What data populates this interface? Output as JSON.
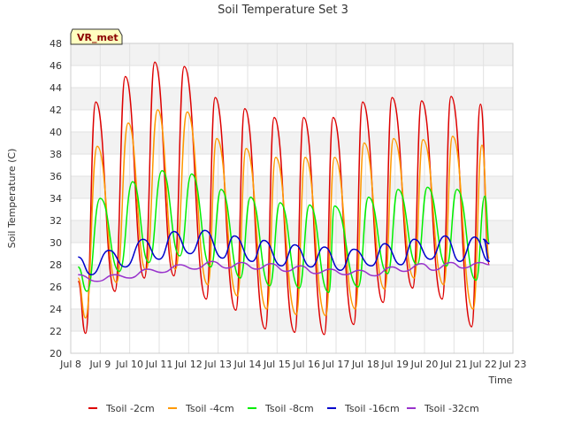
{
  "chart_data": {
    "type": "line",
    "title": "Soil Temperature Set 3",
    "xlabel": "Time",
    "ylabel": "Soil Temperature (C)",
    "badge": "VR_met",
    "xlim": [
      8,
      23
    ],
    "ylim": [
      20,
      48
    ],
    "x_ticks": [
      {
        "value": 8,
        "label": "Jul 8"
      },
      {
        "value": 9,
        "label": "Jul 9"
      },
      {
        "value": 10,
        "label": "Jul 10"
      },
      {
        "value": 11,
        "label": "Jul 11"
      },
      {
        "value": 12,
        "label": "Jul 12"
      },
      {
        "value": 13,
        "label": "Jul 13"
      },
      {
        "value": 14,
        "label": "Jul 14"
      },
      {
        "value": 15,
        "label": "Jul 15"
      },
      {
        "value": 16,
        "label": "Jul 16"
      },
      {
        "value": 17,
        "label": "Jul 17"
      },
      {
        "value": 18,
        "label": "Jul 18"
      },
      {
        "value": 19,
        "label": "Jul 19"
      },
      {
        "value": 20,
        "label": "Jul 20"
      },
      {
        "value": 21,
        "label": "Jul 21"
      },
      {
        "value": 22,
        "label": "Jul 22"
      },
      {
        "value": 23,
        "label": "Jul 23"
      }
    ],
    "y_ticks": [
      20,
      22,
      24,
      26,
      28,
      30,
      32,
      34,
      36,
      38,
      40,
      42,
      44,
      46,
      48
    ],
    "grid": true,
    "legend_position": "bottom",
    "series": [
      {
        "name": "Tsoil -2cm",
        "color": "#dd0000",
        "points": [
          [
            8.25,
            26.5
          ],
          [
            8.5,
            21.8
          ],
          [
            8.85,
            42.7
          ],
          [
            9.5,
            25.6
          ],
          [
            9.85,
            45.0
          ],
          [
            10.5,
            26.8
          ],
          [
            10.85,
            46.3
          ],
          [
            11.5,
            27.0
          ],
          [
            11.85,
            45.9
          ],
          [
            12.6,
            24.9
          ],
          [
            12.9,
            43.1
          ],
          [
            13.6,
            23.9
          ],
          [
            13.9,
            42.1
          ],
          [
            14.6,
            22.2
          ],
          [
            14.9,
            41.3
          ],
          [
            15.6,
            21.9
          ],
          [
            15.9,
            41.3
          ],
          [
            16.6,
            21.7
          ],
          [
            16.9,
            41.3
          ],
          [
            17.6,
            22.6
          ],
          [
            17.9,
            42.7
          ],
          [
            18.6,
            24.6
          ],
          [
            18.9,
            43.1
          ],
          [
            19.6,
            25.9
          ],
          [
            19.9,
            42.8
          ],
          [
            20.6,
            24.9
          ],
          [
            20.9,
            43.2
          ],
          [
            21.6,
            22.4
          ],
          [
            21.9,
            42.5
          ],
          [
            22.2,
            28.0
          ]
        ]
      },
      {
        "name": "Tsoil -4cm",
        "color": "#ff9900",
        "points": [
          [
            8.25,
            26.8
          ],
          [
            8.5,
            23.2
          ],
          [
            8.9,
            38.7
          ],
          [
            9.55,
            26.4
          ],
          [
            9.95,
            40.8
          ],
          [
            10.55,
            27.5
          ],
          [
            10.95,
            42.0
          ],
          [
            11.55,
            27.6
          ],
          [
            11.95,
            41.8
          ],
          [
            12.65,
            26.2
          ],
          [
            12.95,
            39.4
          ],
          [
            13.65,
            25.2
          ],
          [
            13.95,
            38.5
          ],
          [
            14.65,
            24.0
          ],
          [
            14.95,
            37.7
          ],
          [
            15.65,
            23.5
          ],
          [
            15.95,
            37.7
          ],
          [
            16.65,
            23.4
          ],
          [
            16.95,
            37.7
          ],
          [
            17.65,
            24.0
          ],
          [
            17.95,
            39.0
          ],
          [
            18.65,
            25.8
          ],
          [
            18.95,
            39.4
          ],
          [
            19.65,
            26.8
          ],
          [
            19.95,
            39.3
          ],
          [
            20.65,
            26.2
          ],
          [
            20.95,
            39.6
          ],
          [
            21.65,
            24.0
          ],
          [
            21.95,
            38.8
          ],
          [
            22.2,
            28.6
          ]
        ]
      },
      {
        "name": "Tsoil -8cm",
        "color": "#00ee00",
        "points": [
          [
            8.25,
            27.8
          ],
          [
            8.55,
            25.6
          ],
          [
            9.0,
            34.0
          ],
          [
            9.65,
            27.4
          ],
          [
            10.1,
            35.5
          ],
          [
            10.65,
            28.2
          ],
          [
            11.1,
            36.5
          ],
          [
            11.7,
            28.8
          ],
          [
            12.1,
            36.2
          ],
          [
            12.75,
            27.8
          ],
          [
            13.1,
            34.8
          ],
          [
            13.75,
            26.8
          ],
          [
            14.1,
            34.1
          ],
          [
            14.75,
            26.1
          ],
          [
            15.1,
            33.6
          ],
          [
            15.75,
            25.9
          ],
          [
            16.1,
            33.4
          ],
          [
            16.75,
            25.5
          ],
          [
            16.95,
            33.3
          ],
          [
            17.75,
            26.0
          ],
          [
            18.1,
            34.1
          ],
          [
            18.75,
            27.2
          ],
          [
            19.1,
            34.8
          ],
          [
            19.75,
            28.0
          ],
          [
            20.1,
            35.0
          ],
          [
            20.75,
            27.9
          ],
          [
            21.1,
            34.8
          ],
          [
            21.75,
            26.6
          ],
          [
            22.05,
            34.2
          ],
          [
            22.2,
            30.0
          ]
        ]
      },
      {
        "name": "Tsoil -16cm",
        "color": "#0000cc",
        "points": [
          [
            8.25,
            28.7
          ],
          [
            8.7,
            27.1
          ],
          [
            9.3,
            29.3
          ],
          [
            9.85,
            27.8
          ],
          [
            10.45,
            30.3
          ],
          [
            11.0,
            28.5
          ],
          [
            11.5,
            31.0
          ],
          [
            12.05,
            29.0
          ],
          [
            12.55,
            31.1
          ],
          [
            13.15,
            28.6
          ],
          [
            13.55,
            30.6
          ],
          [
            14.15,
            28.3
          ],
          [
            14.55,
            30.2
          ],
          [
            15.15,
            27.9
          ],
          [
            15.6,
            29.8
          ],
          [
            16.15,
            27.8
          ],
          [
            16.6,
            29.6
          ],
          [
            17.15,
            27.5
          ],
          [
            17.6,
            29.4
          ],
          [
            18.2,
            27.9
          ],
          [
            18.65,
            29.9
          ],
          [
            19.2,
            28.0
          ],
          [
            19.65,
            30.3
          ],
          [
            20.2,
            28.5
          ],
          [
            20.7,
            30.6
          ],
          [
            21.2,
            28.3
          ],
          [
            21.7,
            30.5
          ],
          [
            22.2,
            28.3
          ],
          [
            22.0,
            30.3
          ],
          [
            22.2,
            29.9
          ]
        ]
      },
      {
        "name": "Tsoil -32cm",
        "color": "#9933cc",
        "points": [
          [
            8.25,
            27.1
          ],
          [
            8.9,
            26.5
          ],
          [
            9.5,
            27.1
          ],
          [
            10.0,
            26.8
          ],
          [
            10.6,
            27.6
          ],
          [
            11.1,
            27.3
          ],
          [
            11.7,
            28.0
          ],
          [
            12.2,
            27.6
          ],
          [
            12.8,
            28.3
          ],
          [
            13.3,
            27.7
          ],
          [
            13.8,
            28.2
          ],
          [
            14.3,
            27.6
          ],
          [
            14.8,
            28.1
          ],
          [
            15.3,
            27.4
          ],
          [
            15.8,
            27.9
          ],
          [
            16.3,
            27.2
          ],
          [
            16.8,
            27.6
          ],
          [
            17.3,
            27.1
          ],
          [
            17.8,
            27.5
          ],
          [
            18.3,
            27.0
          ],
          [
            18.9,
            27.8
          ],
          [
            19.3,
            27.4
          ],
          [
            19.9,
            28.1
          ],
          [
            20.3,
            27.5
          ],
          [
            20.9,
            28.2
          ],
          [
            21.3,
            27.7
          ],
          [
            21.9,
            28.2
          ],
          [
            22.2,
            28.0
          ]
        ]
      }
    ]
  }
}
